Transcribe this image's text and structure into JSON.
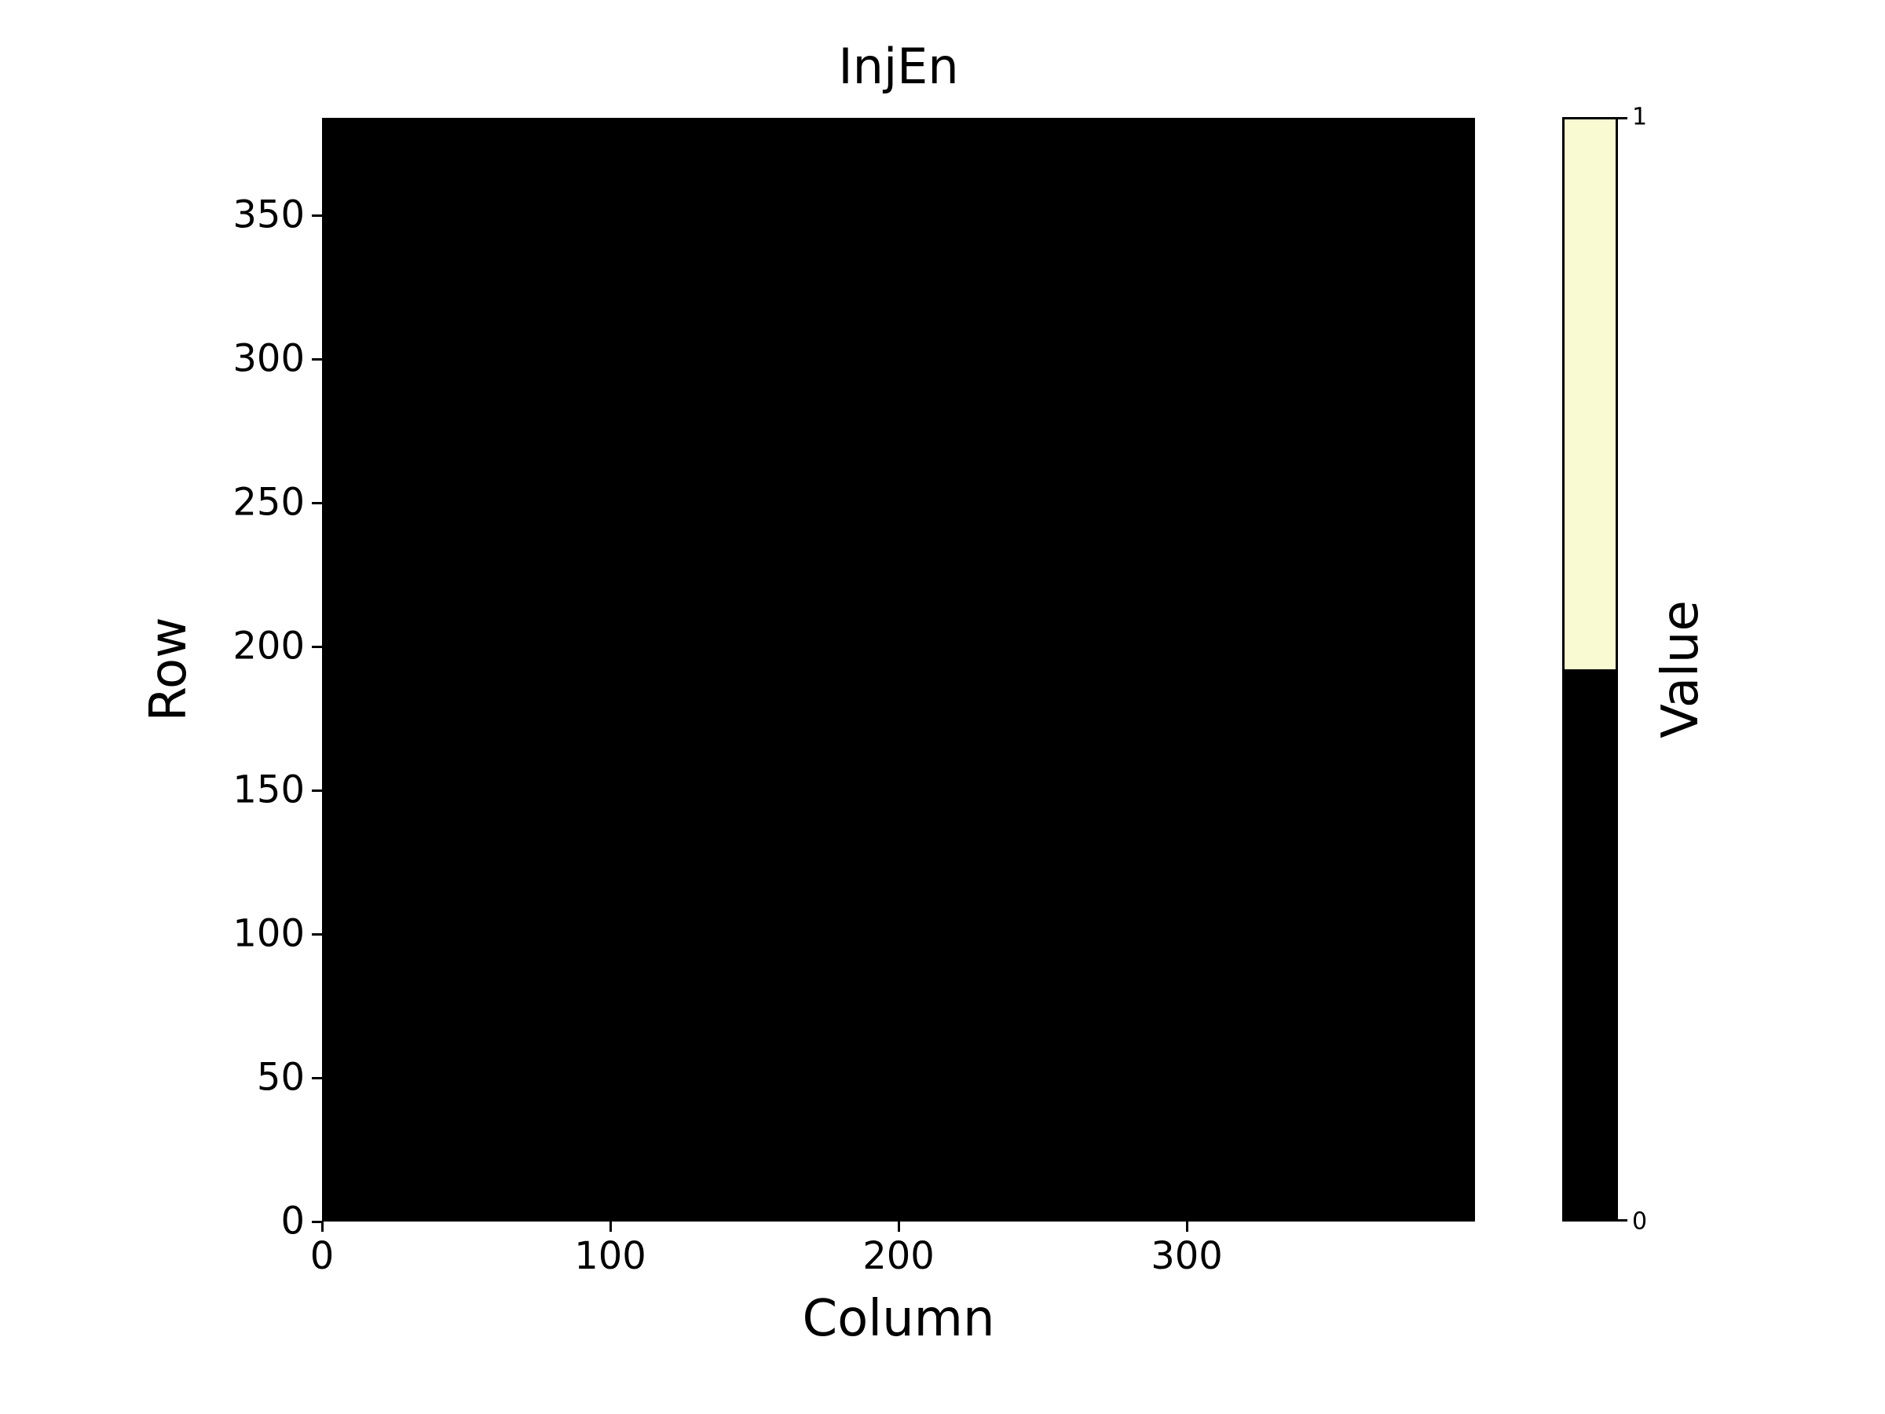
{
  "figure": {
    "background_color": "#ffffff",
    "text_color": "#000000"
  },
  "chart_data": {
    "type": "heatmap",
    "title": "InjEn",
    "xlabel": "Column",
    "ylabel": "Row",
    "x_range": [
      0,
      400
    ],
    "y_range": [
      0,
      384
    ],
    "xticks": [
      0,
      100,
      200,
      300
    ],
    "yticks": [
      0,
      50,
      100,
      150,
      200,
      250,
      300,
      350
    ],
    "grid": false,
    "values": "uniform",
    "uniform_value": 0,
    "value_color": "#000000",
    "colorbar": {
      "label": "Value",
      "position": "right",
      "ticks": [
        0,
        1
      ],
      "tick_fractions": [
        0,
        1
      ],
      "segments": [
        {
          "value": 0,
          "color": "#000000",
          "range": [
            0,
            0.5
          ]
        },
        {
          "value": 1,
          "color": "#FAFAD2",
          "range": [
            0.5,
            1
          ]
        }
      ]
    }
  }
}
